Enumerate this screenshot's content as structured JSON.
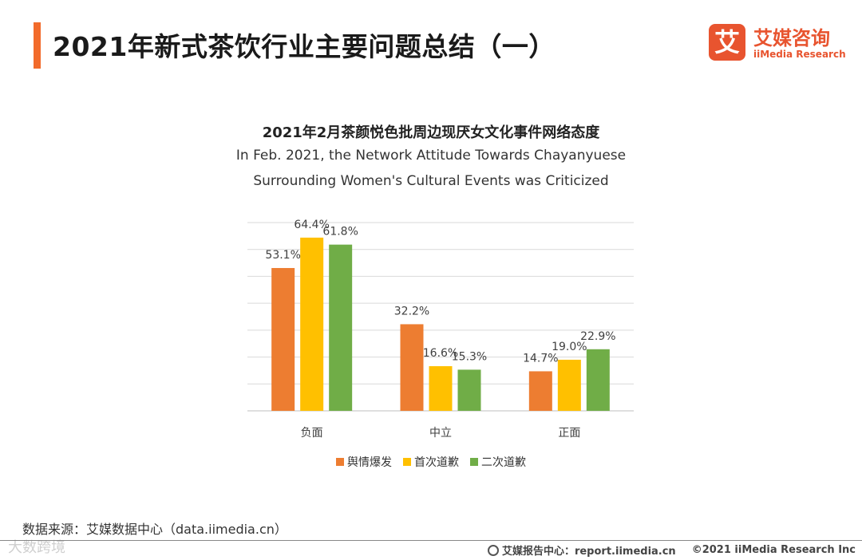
{
  "header": {
    "title": "2021年新式茶饮行业主要问题总结（一）",
    "accent_color": "#f26b2b"
  },
  "logo": {
    "mark": "艾",
    "name_cn": "艾媒咨询",
    "name_en": "iiMedia Research",
    "color": "#e8542f"
  },
  "chart_data": {
    "type": "bar",
    "title": "2021年2月茶颜悦色批周边现厌女文化事件网络态度",
    "subtitle_line1": "In Feb. 2021, the Network Attitude Towards Chayanyuese",
    "subtitle_line2": "Surrounding Women's Cultural Events was Criticized",
    "categories": [
      "负面",
      "中立",
      "正面"
    ],
    "series": [
      {
        "name": "舆情爆发",
        "values": [
          53.1,
          32.2,
          14.7
        ],
        "color": "#ed7d31"
      },
      {
        "name": "首次道歉",
        "values": [
          64.4,
          16.6,
          19.0
        ],
        "color": "#ffc000"
      },
      {
        "name": "二次道歉",
        "values": [
          61.8,
          15.3,
          22.9
        ],
        "color": "#70ad47"
      }
    ],
    "unit": "%",
    "ylim": [
      0,
      70
    ],
    "grid": true,
    "legend_position": "bottom"
  },
  "footer": {
    "source": "数据来源：艾媒数据中心（data.iimedia.cn）",
    "site": "艾媒报告中心：report.iimedia.cn",
    "copyright": "©2021  iiMedia Research  Inc",
    "watermark": "大数跨境"
  }
}
